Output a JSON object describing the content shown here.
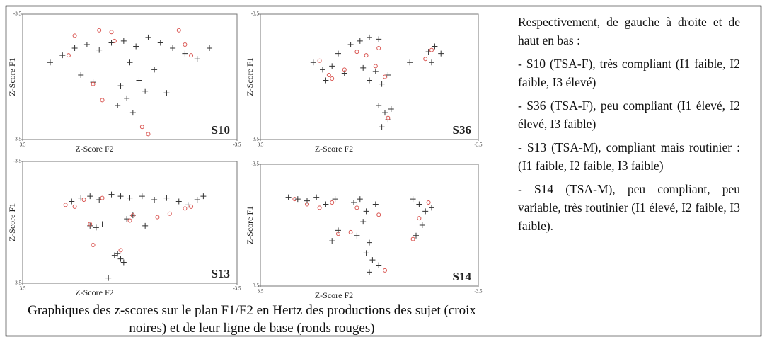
{
  "charts": [
    {
      "type": "scatter",
      "label": "S10",
      "xlabel": "Z-Score F2",
      "ylabel": "Z-Score F1",
      "xlim": [
        3.5,
        -3.5
      ],
      "ylim": [
        3.5,
        -3.5
      ],
      "xticks": [
        3.5,
        -3.5
      ],
      "yticks": [
        3.5,
        -3.5
      ],
      "series": [
        {
          "marker": "cross",
          "color": "#333333",
          "x": [
            2.6,
            2.2,
            1.8,
            1.4,
            1.0,
            0.6,
            0.2,
            -0.2,
            -0.6,
            -1.0,
            -1.4,
            -1.8,
            -2.2,
            -2.6,
            0.0,
            -0.3,
            0.3,
            -0.5,
            0.1,
            -0.8,
            1.2,
            1.6,
            -1.2,
            0.4,
            -0.1
          ],
          "values": [
            -0.8,
            -1.2,
            -1.6,
            -1.8,
            -1.5,
            -1.9,
            -2.0,
            -1.7,
            -2.2,
            -1.9,
            -1.6,
            -1.3,
            -1.0,
            -1.6,
            -0.8,
            0.2,
            0.5,
            0.8,
            1.2,
            -0.4,
            0.3,
            -0.1,
            0.9,
            1.6,
            2.0
          ]
        },
        {
          "marker": "circle",
          "color": "#d9534f",
          "x": [
            1.8,
            1.0,
            0.6,
            -1.6,
            -1.8,
            -2.0,
            1.2,
            0.9,
            -0.4,
            -0.6,
            2.0,
            0.5
          ],
          "values": [
            -2.3,
            -2.6,
            -2.5,
            -2.6,
            -1.8,
            -1.2,
            0.4,
            1.3,
            2.8,
            3.2,
            -1.2,
            -2.0
          ]
        }
      ]
    },
    {
      "type": "scatter",
      "label": "S36",
      "xlabel": "Z-Score F2",
      "ylabel": "Z-Score F1",
      "xlim": [
        3.5,
        -3.5
      ],
      "ylim": [
        3.5,
        -3.5
      ],
      "xticks": [
        3.5,
        -3.5
      ],
      "yticks": [
        3.5,
        -3.5
      ],
      "series": [
        {
          "marker": "cross",
          "color": "#333333",
          "x": [
            1.8,
            1.5,
            1.2,
            1.4,
            0.6,
            0.3,
            0.0,
            -0.3,
            0.2,
            -0.2,
            0.0,
            -0.4,
            -0.6,
            -1.3,
            -1.9,
            -2.1,
            -2.3,
            -2.0,
            -0.3,
            -0.5,
            -0.6,
            -0.4,
            -0.7,
            1.0,
            0.8
          ],
          "values": [
            -0.8,
            -0.4,
            -0.6,
            0.2,
            -1.8,
            -2.0,
            -2.2,
            -2.1,
            -0.5,
            -0.3,
            0.2,
            0.4,
            -0.1,
            -0.8,
            -1.4,
            -1.7,
            -1.3,
            -0.8,
            1.6,
            2.0,
            2.4,
            2.8,
            1.8,
            -1.3,
            -0.2
          ]
        },
        {
          "marker": "circle",
          "color": "#d9534f",
          "x": [
            1.6,
            1.2,
            0.4,
            0.1,
            -0.2,
            -0.5,
            -0.3,
            -1.8,
            -2.0,
            -0.6,
            0.8,
            1.3
          ],
          "values": [
            -0.9,
            0.1,
            -1.4,
            -1.2,
            -0.6,
            0.0,
            -1.6,
            -1.0,
            -1.5,
            2.3,
            -0.4,
            -0.1
          ]
        }
      ]
    },
    {
      "type": "scatter",
      "label": "S13",
      "xlabel": "Z-Score F2",
      "ylabel": "Z-Score F1",
      "xlim": [
        3.5,
        -3.5
      ],
      "ylim": [
        3.5,
        -3.5
      ],
      "xticks": [
        3.5,
        -3.5
      ],
      "yticks": [
        3.5,
        -3.5
      ],
      "series": [
        {
          "marker": "cross",
          "color": "#333333",
          "x": [
            1.9,
            1.6,
            1.3,
            1.0,
            0.6,
            0.3,
            0.0,
            -0.4,
            -0.8,
            -1.2,
            -1.6,
            -1.9,
            -2.2,
            -2.4,
            1.3,
            1.1,
            0.9,
            0.1,
            -0.1,
            -0.5,
            0.4,
            0.3,
            0.2,
            0.5,
            0.7
          ],
          "values": [
            -1.2,
            -1.4,
            -1.5,
            -1.3,
            -1.6,
            -1.5,
            -1.4,
            -1.5,
            -1.3,
            -1.4,
            -1.2,
            -1.0,
            -1.3,
            -1.5,
            0.2,
            0.3,
            0.1,
            -0.2,
            -0.4,
            0.2,
            1.8,
            2.1,
            2.3,
            1.9,
            3.2
          ]
        },
        {
          "marker": "circle",
          "color": "#d9534f",
          "x": [
            2.1,
            1.8,
            1.5,
            0.9,
            -0.1,
            0.0,
            -0.9,
            -1.8,
            -2.0,
            1.3,
            1.2,
            -1.3,
            0.3
          ],
          "values": [
            -1.0,
            -0.9,
            -1.3,
            -1.4,
            -0.4,
            -0.1,
            -0.3,
            -0.8,
            -0.9,
            0.1,
            1.3,
            -0.5,
            1.6
          ]
        }
      ]
    },
    {
      "type": "scatter",
      "label": "S14",
      "xlabel": "Z-Score F2",
      "ylabel": "Z-Score F1",
      "xlim": [
        3.5,
        -3.5
      ],
      "ylim": [
        3.5,
        -3.5
      ],
      "xticks": [
        3.5,
        -3.5
      ],
      "yticks": [
        3.5,
        -3.5
      ],
      "series": [
        {
          "marker": "cross",
          "color": "#333333",
          "x": [
            2.6,
            2.3,
            2.0,
            1.7,
            1.4,
            1.1,
            1.0,
            0.5,
            0.3,
            0.1,
            0.2,
            0.4,
            0.0,
            -0.2,
            -1.4,
            -1.6,
            -1.8,
            -2.0,
            -1.7,
            -1.5,
            0.1,
            -0.1,
            -0.3,
            0.0,
            1.2
          ],
          "values": [
            -1.6,
            -1.5,
            -1.4,
            -1.6,
            -1.2,
            -1.5,
            0.3,
            -1.3,
            -1.5,
            -0.8,
            -0.2,
            0.6,
            1.0,
            -1.2,
            -1.5,
            -1.2,
            -0.8,
            -1.0,
            0.0,
            0.6,
            1.6,
            2.0,
            2.3,
            2.7,
            0.9
          ]
        },
        {
          "marker": "circle",
          "color": "#d9534f",
          "x": [
            2.4,
            2.0,
            1.6,
            1.2,
            0.4,
            -0.3,
            -1.6,
            -1.9,
            -1.4,
            -0.5,
            1.0,
            0.6
          ],
          "values": [
            -1.5,
            -1.2,
            -1.0,
            -1.3,
            -1.0,
            -0.6,
            -0.4,
            -1.3,
            0.8,
            2.6,
            0.5,
            0.4
          ]
        }
      ]
    }
  ],
  "caption": "Graphiques des z-scores sur le plan F1/F2 en Hertz des productions des sujet (croix noires) et de leur ligne de base (ronds rouges)",
  "side_text": [
    "Respectivement, de gauche à droite et de haut en bas :",
    "- S10 (TSA-F), très compliant (I1 faible, I2 faible, I3 élevé)",
    "- S36 (TSA-F), peu compliant (I1 élevé, I2 élevé, I3 faible)",
    "- S13 (TSA-M), compliant mais routinier : (I1 faible, I2 faible, I3 faible)",
    "- S14 (TSA-M), peu compliant, peu variable, très routinier (I1 élevé, I2 faible, I3 faible)."
  ]
}
